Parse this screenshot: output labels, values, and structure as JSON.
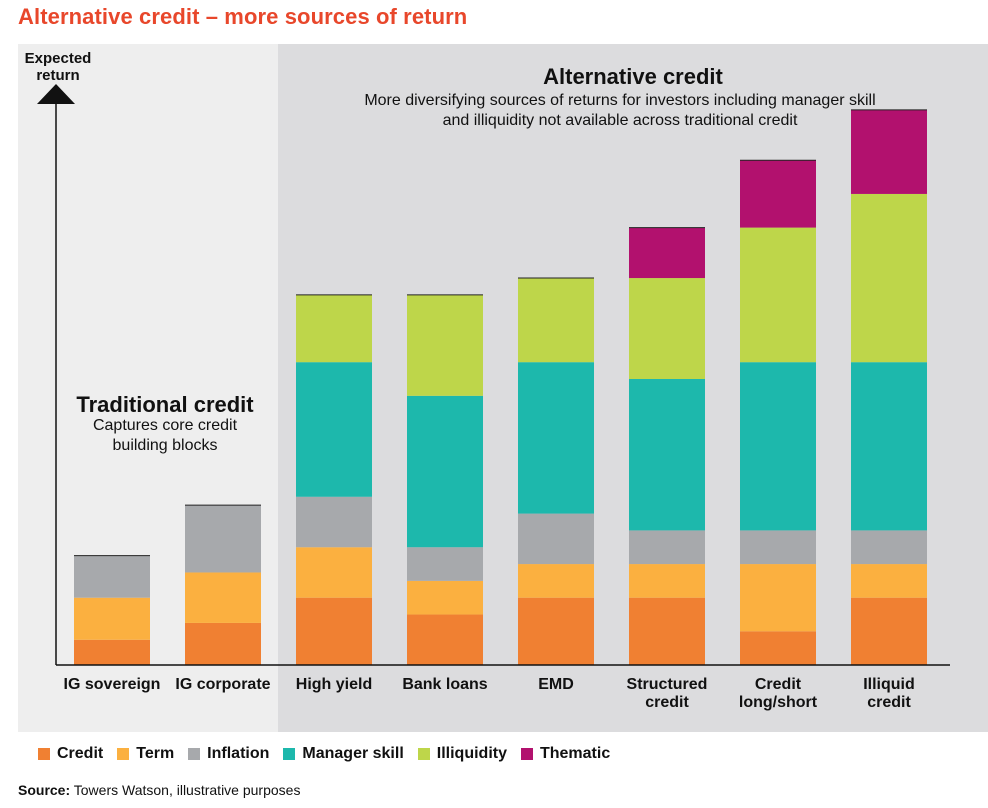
{
  "page_title": "Alternative credit – more sources of return",
  "source": {
    "label": "Source:",
    "text": "Towers Watson, illustrative purposes"
  },
  "sections": {
    "traditional": {
      "title": "Traditional credit",
      "subtitle_lines": [
        "Captures core credit",
        "building blocks"
      ]
    },
    "alternative": {
      "title": "Alternative credit",
      "subtitle_lines": [
        "More diversifying sources of returns for investors including manager skill",
        "and illiquidity not available across traditional credit"
      ]
    }
  },
  "colors": {
    "Credit": "#f08032",
    "Term": "#fbb040",
    "Inflation": "#a7a9ac",
    "Manager skill": "#1db8ac",
    "Illiquidity": "#bed64a",
    "Thematic": "#b2116e",
    "title": "#e8472b",
    "panel_traditional": "#eeeeee",
    "panel_alternative": "#dcdcde"
  },
  "chart_data": {
    "type": "bar",
    "stacked": true,
    "title": "Alternative credit – more sources of return",
    "ylabel": "Expected return",
    "xlabel": "",
    "ylim": [
      0,
      34
    ],
    "grid": false,
    "legend_position": "bottom",
    "categories": [
      [
        "IG sovereign"
      ],
      [
        "IG corporate"
      ],
      [
        "High yield"
      ],
      [
        "Bank loans"
      ],
      [
        "EMD"
      ],
      [
        "Structured",
        "credit"
      ],
      [
        "Credit",
        "long/short"
      ],
      [
        "Illiquid",
        "credit"
      ]
    ],
    "series": [
      {
        "name": "Credit",
        "values": [
          1.5,
          2.5,
          4,
          3,
          4,
          4,
          2,
          4
        ]
      },
      {
        "name": "Term",
        "values": [
          2.5,
          3,
          3,
          2,
          2,
          2,
          4,
          2
        ]
      },
      {
        "name": "Inflation",
        "values": [
          2.5,
          4,
          3,
          2,
          3,
          2,
          2,
          2
        ]
      },
      {
        "name": "Manager skill",
        "values": [
          0,
          0,
          8,
          9,
          9,
          9,
          10,
          10
        ]
      },
      {
        "name": "Illiquidity",
        "values": [
          0,
          0,
          4,
          6,
          5,
          6,
          8,
          10
        ]
      },
      {
        "name": "Thematic",
        "values": [
          0,
          0,
          0,
          0,
          0,
          3,
          4,
          5
        ]
      }
    ]
  }
}
